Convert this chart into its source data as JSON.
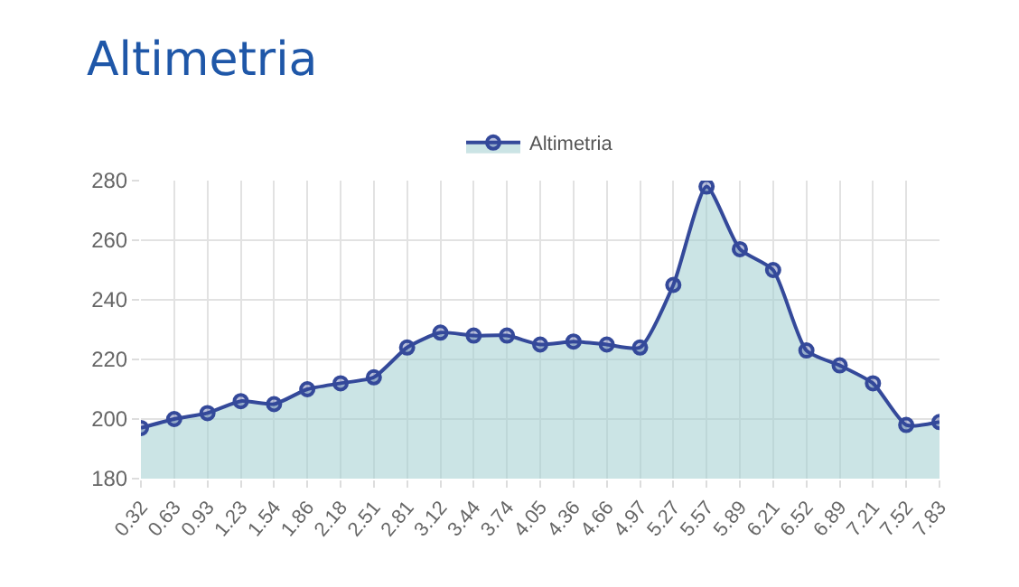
{
  "chart_data": {
    "type": "area",
    "title": "Altimetria",
    "categories": [
      "0.32",
      "0.63",
      "0.93",
      "1.23",
      "1.54",
      "1.86",
      "2.18",
      "2.51",
      "2.81",
      "3.12",
      "3.44",
      "3.74",
      "4.05",
      "4.36",
      "4.66",
      "4.97",
      "5.27",
      "5.57",
      "5.89",
      "6.21",
      "6.52",
      "6.89",
      "7.21",
      "7.52",
      "7.83"
    ],
    "series": [
      {
        "name": "Altimetria",
        "color": "#34499a",
        "values": [
          197,
          200,
          202,
          206,
          205,
          210,
          212,
          214,
          224,
          229,
          228,
          228,
          225,
          226,
          225,
          224,
          245,
          278,
          257,
          250,
          223,
          218,
          212,
          198,
          199
        ]
      }
    ],
    "ylim": [
      180,
      280
    ],
    "yticks": [
      180,
      200,
      220,
      240,
      260,
      280
    ],
    "grid": true,
    "legend": "top",
    "marker": "circle"
  }
}
